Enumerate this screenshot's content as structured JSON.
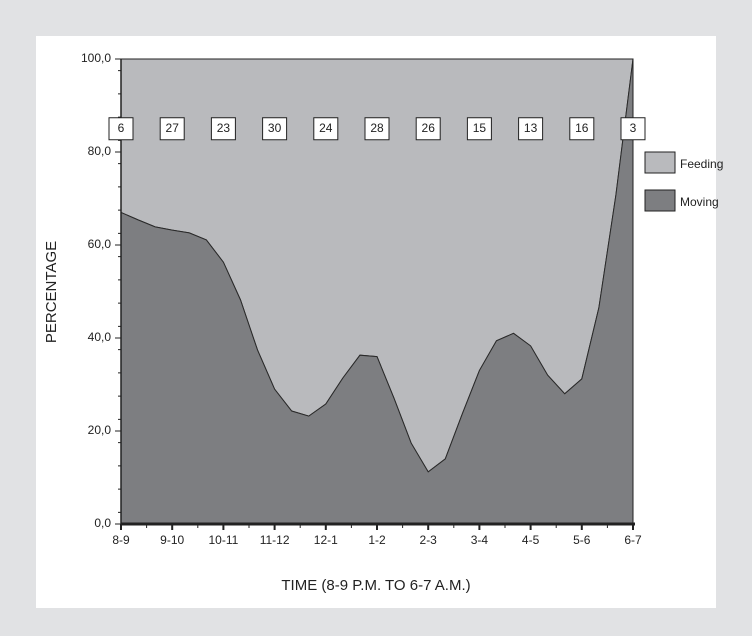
{
  "chart_data": {
    "type": "stacked-area",
    "x_label": "TIME (8-9 P.M. TO 6-7 A.M.)",
    "y_label": "PERCENTAGE",
    "categories": [
      "8-9",
      null,
      null,
      "9-10",
      null,
      null,
      "10-11",
      null,
      null,
      "11-12",
      null,
      null,
      "12-1",
      null,
      null,
      "1-2",
      null,
      null,
      "2-3",
      null,
      null,
      "3-4",
      null,
      null,
      "4-5",
      null,
      null,
      "5-6",
      null,
      null,
      "6-7"
    ],
    "series": [
      {
        "name": "Moving",
        "color": "#7d7e81",
        "values": [
          67,
          65.4,
          63.9,
          63.2,
          62.6,
          61.1,
          56.3,
          48.2,
          37.4,
          29,
          24.3,
          23.2,
          25.8,
          31.4,
          36.3,
          36,
          27,
          17.4,
          11.2,
          14,
          23.7,
          33,
          39.4,
          41,
          38.3,
          32,
          28,
          31.2,
          46.5,
          70.8,
          100
        ]
      },
      {
        "name": "Feeding",
        "color": "#b9babd",
        "values": [
          33,
          34.6,
          36.1,
          36.8,
          37.4,
          38.9,
          43.7,
          51.8,
          62.6,
          71,
          75.7,
          76.8,
          74.2,
          68.6,
          63.7,
          64,
          73,
          82.6,
          88.8,
          86,
          76.3,
          67,
          60.6,
          59,
          61.7,
          68,
          72,
          68.8,
          53.5,
          29.2,
          0
        ]
      }
    ],
    "sample_sizes": [
      6,
      27,
      23,
      30,
      24,
      28,
      26,
      15,
      13,
      16,
      3
    ],
    "ylim": [
      0,
      100
    ],
    "yticks": [
      {
        "value": 0,
        "label": "0,0"
      },
      {
        "value": 20,
        "label": "20,0"
      },
      {
        "value": 40,
        "label": "40,0"
      },
      {
        "value": 60,
        "label": "60,0"
      },
      {
        "value": 80,
        "label": "80,0"
      },
      {
        "value": 100,
        "label": "100,0"
      }
    ],
    "legend": "right"
  }
}
